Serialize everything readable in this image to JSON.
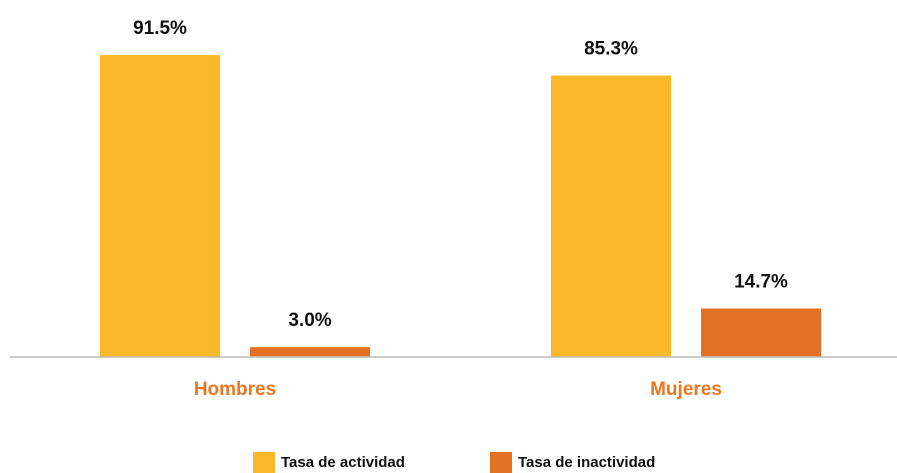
{
  "chart_data": {
    "type": "bar",
    "categories": [
      "Hombres",
      "Mujeres"
    ],
    "series": [
      {
        "name": "Tasa de actividad",
        "color": "#FBB829",
        "values": [
          91.5,
          85.3
        ],
        "value_labels": [
          "91.5%",
          "85.3%"
        ]
      },
      {
        "name": "Tasa de inactividad",
        "color": "#E57224",
        "values": [
          3.0,
          14.7
        ],
        "value_labels": [
          "3.0%",
          "14.7%"
        ]
      }
    ],
    "ylim": [
      0,
      100
    ],
    "category_label_color": "#E87722"
  }
}
